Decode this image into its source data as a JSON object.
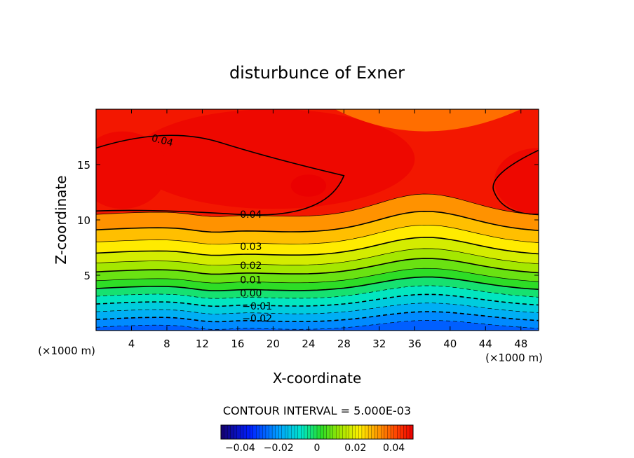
{
  "chart_data": {
    "type": "heatmap",
    "title": "disturbunce of Exner",
    "xlabel": "X-coordinate",
    "ylabel": "Z-coordinate",
    "x_unit": "(×1000 m)",
    "y_unit": "(×1000 m)",
    "xlim": [
      0,
      50
    ],
    "ylim": [
      0,
      20
    ],
    "x_ticks": [
      4,
      8,
      12,
      16,
      20,
      24,
      28,
      32,
      36,
      40,
      44,
      48
    ],
    "y_ticks": [
      5,
      10,
      15
    ],
    "contour_interval_label": "CONTOUR INTERVAL = 5.000E-03",
    "contour_interval": 0.005,
    "value_range": [
      -0.05,
      0.05
    ],
    "colorbar_ticks": [
      {
        "value": -0.04,
        "label": "−0.04"
      },
      {
        "value": -0.02,
        "label": "−0.02"
      },
      {
        "value": 0,
        "label": "0"
      },
      {
        "value": 0.02,
        "label": "0.02"
      },
      {
        "value": 0.04,
        "label": "0.04"
      }
    ],
    "contour_labels": [
      {
        "text": "0.04",
        "x": 7.5,
        "y": 17.2,
        "rotate": 15
      },
      {
        "text": "0.04",
        "x": 17.5,
        "y": 10.5,
        "rotate": 0
      },
      {
        "text": "0.03",
        "x": 17.5,
        "y": 7.6,
        "rotate": 0
      },
      {
        "text": "0.02",
        "x": 17.5,
        "y": 5.9,
        "rotate": 0
      },
      {
        "text": "0.01",
        "x": 17.5,
        "y": 4.6,
        "rotate": 0
      },
      {
        "text": "0.00",
        "x": 17.5,
        "y": 3.4,
        "rotate": 0
      },
      {
        "text": "−0.01",
        "x": 18.2,
        "y": 2.2,
        "rotate": 0
      },
      {
        "text": "−0.02",
        "x": 18.2,
        "y": 1.1,
        "rotate": 0
      }
    ]
  }
}
